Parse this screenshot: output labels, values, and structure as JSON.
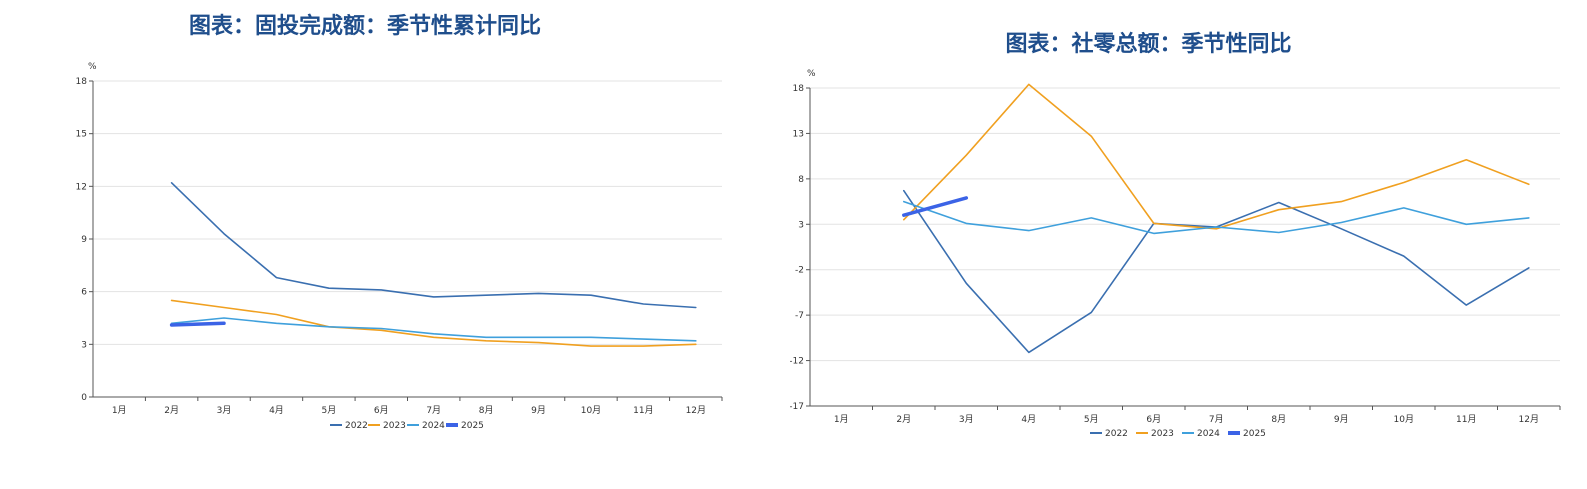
{
  "colors": {
    "title": "#1f4e8c",
    "s2022": "#3a6fb0",
    "s2023": "#f0a020",
    "s2024": "#3fa0dc",
    "s2025": "#3b63e6",
    "grid": "#e3e3e3",
    "axis": "#555555"
  },
  "chart_data": [
    {
      "type": "line",
      "title": "图表：固投完成额：季节性累计同比",
      "ylabel": "%",
      "categories": [
        "1月",
        "2月",
        "3月",
        "4月",
        "5月",
        "6月",
        "7月",
        "8月",
        "9月",
        "10月",
        "11月",
        "12月"
      ],
      "yticks": [
        "0",
        "3",
        "6",
        "9",
        "12",
        "15",
        "18"
      ],
      "ylim": [
        0,
        18
      ],
      "grid": true,
      "legend_position": "bottom",
      "series": [
        {
          "name": "2022",
          "values": [
            null,
            12.2,
            9.3,
            6.8,
            6.2,
            6.1,
            5.7,
            5.8,
            5.9,
            5.8,
            5.3,
            5.1
          ]
        },
        {
          "name": "2023",
          "values": [
            null,
            5.5,
            5.1,
            4.7,
            4.0,
            3.8,
            3.4,
            3.2,
            3.1,
            2.9,
            2.9,
            3.0
          ]
        },
        {
          "name": "2024",
          "values": [
            null,
            4.2,
            4.5,
            4.2,
            4.0,
            3.9,
            3.6,
            3.4,
            3.4,
            3.4,
            3.3,
            3.2
          ]
        },
        {
          "name": "2025",
          "values": [
            null,
            4.1,
            4.2,
            null,
            null,
            null,
            null,
            null,
            null,
            null,
            null,
            null
          ]
        }
      ]
    },
    {
      "type": "line",
      "title": "图表：社零总额：季节性同比",
      "ylabel": "%",
      "categories": [
        "1月",
        "2月",
        "3月",
        "4月",
        "5月",
        "6月",
        "7月",
        "8月",
        "9月",
        "10月",
        "11月",
        "12月"
      ],
      "yticks": [
        "-17",
        "-12",
        "-7",
        "-2",
        "3",
        "8",
        "13",
        "18"
      ],
      "ylim": [
        -17,
        18
      ],
      "grid": true,
      "legend_position": "bottom",
      "series": [
        {
          "name": "2022",
          "values": [
            null,
            6.7,
            -3.5,
            -11.1,
            -6.7,
            3.1,
            2.7,
            5.4,
            2.5,
            -0.5,
            -5.9,
            -1.8
          ]
        },
        {
          "name": "2023",
          "values": [
            null,
            3.5,
            10.6,
            18.4,
            12.7,
            3.1,
            2.5,
            4.6,
            5.5,
            7.6,
            10.1,
            7.4
          ]
        },
        {
          "name": "2024",
          "values": [
            null,
            5.5,
            3.1,
            2.3,
            3.7,
            2.0,
            2.7,
            2.1,
            3.2,
            4.8,
            3.0,
            3.7
          ]
        },
        {
          "name": "2025",
          "values": [
            null,
            4.0,
            5.9,
            null,
            null,
            null,
            null,
            null,
            null,
            null,
            null,
            null
          ]
        }
      ]
    }
  ]
}
